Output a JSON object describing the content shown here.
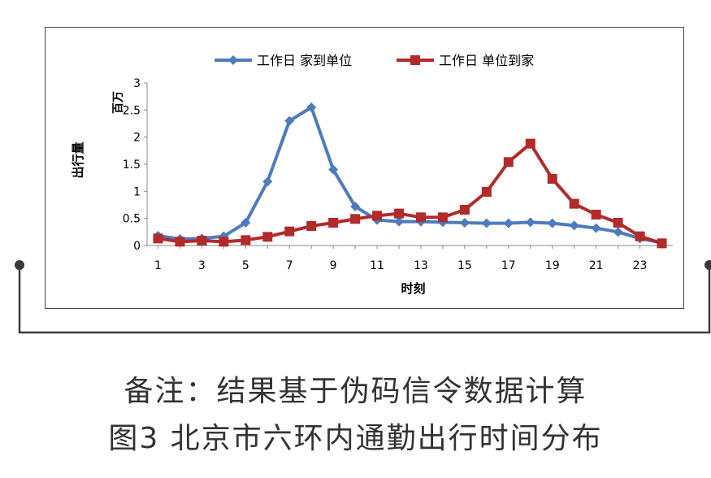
{
  "chart_data": {
    "type": "line",
    "x": [
      1,
      2,
      3,
      4,
      5,
      6,
      7,
      8,
      9,
      10,
      11,
      12,
      13,
      14,
      15,
      16,
      17,
      18,
      19,
      20,
      21,
      22,
      23,
      24
    ],
    "xticks": [
      1,
      3,
      5,
      7,
      9,
      11,
      13,
      15,
      17,
      19,
      21,
      23
    ],
    "yticks": [
      0,
      0.5,
      1,
      1.5,
      2,
      2.5,
      3
    ],
    "ylim": [
      0,
      3
    ],
    "xlabel": "时刻",
    "ylabel": "出行量",
    "yunit": "百万",
    "grid": false,
    "legend_position": "top",
    "series": [
      {
        "name": "工作日 家到单位",
        "color": "#4f7bbd",
        "marker": "diamond",
        "values": [
          0.18,
          0.12,
          0.13,
          0.17,
          0.42,
          1.18,
          2.3,
          2.55,
          1.4,
          0.72,
          0.47,
          0.44,
          0.44,
          0.43,
          0.42,
          0.41,
          0.41,
          0.43,
          0.41,
          0.37,
          0.32,
          0.25,
          0.13,
          0.05
        ]
      },
      {
        "name": "工作日 单位到家",
        "color": "#b22a2a",
        "marker": "square",
        "values": [
          0.13,
          0.07,
          0.09,
          0.07,
          0.1,
          0.16,
          0.26,
          0.36,
          0.42,
          0.49,
          0.55,
          0.59,
          0.52,
          0.52,
          0.66,
          0.99,
          1.54,
          1.88,
          1.23,
          0.77,
          0.57,
          0.42,
          0.17,
          0.04
        ]
      }
    ]
  },
  "caption": {
    "line1": "备注：结果基于伪码信令数据计算",
    "line2": "图3 北京市六环内通勤出行时间分布"
  },
  "decor": {
    "bracket_color": "#3a3a3a"
  }
}
